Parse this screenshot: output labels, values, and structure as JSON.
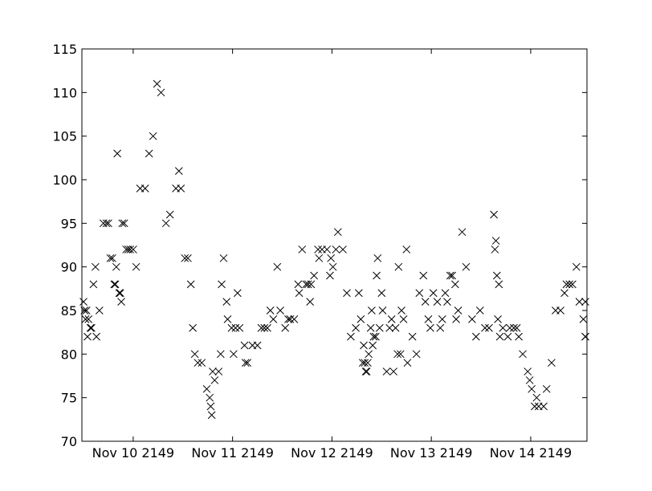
{
  "chart_data": {
    "type": "scatter",
    "title": "",
    "xlabel": "",
    "ylabel": "",
    "marker": "x",
    "marker_color": "#000000",
    "grid": false,
    "legend": "none",
    "xlim": [
      0,
      5.05
    ],
    "ylim": [
      70,
      115
    ],
    "x_ticks": [
      {
        "value": 0.5,
        "label": "Nov 10 2149"
      },
      {
        "value": 1.5,
        "label": "Nov 11 2149"
      },
      {
        "value": 2.5,
        "label": "Nov 12 2149"
      },
      {
        "value": 3.5,
        "label": "Nov 13 2149"
      },
      {
        "value": 4.5,
        "label": "Nov 14 2149"
      }
    ],
    "y_ticks": [
      {
        "value": 70,
        "label": "70"
      },
      {
        "value": 75,
        "label": "75"
      },
      {
        "value": 80,
        "label": "80"
      },
      {
        "value": 85,
        "label": "85"
      },
      {
        "value": 90,
        "label": "90"
      },
      {
        "value": 95,
        "label": "95"
      },
      {
        "value": 100,
        "label": "100"
      },
      {
        "value": 105,
        "label": "105"
      },
      {
        "value": 110,
        "label": "110"
      },
      {
        "value": 115,
        "label": "115"
      }
    ],
    "series": [
      {
        "points": [
          [
            0.0,
            86
          ],
          [
            0.01,
            85
          ],
          [
            0.02,
            84
          ],
          [
            0.03,
            85
          ],
          [
            0.04,
            82
          ],
          [
            0.05,
            84
          ],
          [
            0.07,
            83
          ],
          [
            0.08,
            83
          ],
          [
            0.1,
            88
          ],
          [
            0.12,
            90
          ],
          [
            0.13,
            82
          ],
          [
            0.16,
            85
          ],
          [
            0.2,
            95
          ],
          [
            0.23,
            95
          ],
          [
            0.25,
            95
          ],
          [
            0.27,
            91
          ],
          [
            0.29,
            91
          ],
          [
            0.31,
            88
          ],
          [
            0.32,
            88
          ],
          [
            0.33,
            90
          ],
          [
            0.34,
            103
          ],
          [
            0.36,
            87
          ],
          [
            0.37,
            87
          ],
          [
            0.38,
            86
          ],
          [
            0.39,
            95
          ],
          [
            0.41,
            95
          ],
          [
            0.43,
            92
          ],
          [
            0.45,
            92
          ],
          [
            0.47,
            92
          ],
          [
            0.5,
            92
          ],
          [
            0.53,
            90
          ],
          [
            0.57,
            99
          ],
          [
            0.62,
            99
          ],
          [
            0.66,
            103
          ],
          [
            0.7,
            105
          ],
          [
            0.74,
            111
          ],
          [
            0.78,
            110
          ],
          [
            0.83,
            95
          ],
          [
            0.87,
            96
          ],
          [
            0.93,
            99
          ],
          [
            0.96,
            101
          ],
          [
            0.98,
            99
          ],
          [
            1.02,
            91
          ],
          [
            1.05,
            91
          ],
          [
            1.08,
            88
          ],
          [
            1.1,
            83
          ],
          [
            1.12,
            80
          ],
          [
            1.15,
            79
          ],
          [
            1.19,
            79
          ],
          [
            1.24,
            76
          ],
          [
            1.27,
            75
          ],
          [
            1.28,
            74
          ],
          [
            1.29,
            73
          ],
          [
            1.3,
            78
          ],
          [
            1.32,
            77
          ],
          [
            1.36,
            78
          ],
          [
            1.38,
            80
          ],
          [
            1.39,
            88
          ],
          [
            1.41,
            91
          ],
          [
            1.44,
            86
          ],
          [
            1.45,
            84
          ],
          [
            1.49,
            83
          ],
          [
            1.51,
            80
          ],
          [
            1.53,
            83
          ],
          [
            1.55,
            87
          ],
          [
            1.57,
            83
          ],
          [
            1.62,
            81
          ],
          [
            1.63,
            79
          ],
          [
            1.65,
            79
          ],
          [
            1.7,
            81
          ],
          [
            1.75,
            81
          ],
          [
            1.79,
            83
          ],
          [
            1.82,
            83
          ],
          [
            1.85,
            83
          ],
          [
            1.88,
            85
          ],
          [
            1.91,
            84
          ],
          [
            1.95,
            90
          ],
          [
            1.98,
            85
          ],
          [
            2.03,
            83
          ],
          [
            2.06,
            84
          ],
          [
            2.08,
            84
          ],
          [
            2.12,
            84
          ],
          [
            2.16,
            88
          ],
          [
            2.17,
            87
          ],
          [
            2.2,
            92
          ],
          [
            2.24,
            88
          ],
          [
            2.26,
            88
          ],
          [
            2.28,
            86
          ],
          [
            2.29,
            88
          ],
          [
            2.32,
            89
          ],
          [
            2.36,
            92
          ],
          [
            2.37,
            91
          ],
          [
            2.4,
            92
          ],
          [
            2.45,
            92
          ],
          [
            2.48,
            89
          ],
          [
            2.49,
            91
          ],
          [
            2.51,
            90
          ],
          [
            2.54,
            92
          ],
          [
            2.56,
            94
          ],
          [
            2.61,
            92
          ],
          [
            2.65,
            87
          ],
          [
            2.69,
            82
          ],
          [
            2.74,
            83
          ],
          [
            2.77,
            87
          ],
          [
            2.79,
            84
          ],
          [
            2.81,
            79
          ],
          [
            2.82,
            81
          ],
          [
            2.83,
            79
          ],
          [
            2.84,
            78
          ],
          [
            2.85,
            78
          ],
          [
            2.86,
            79
          ],
          [
            2.87,
            80
          ],
          [
            2.89,
            83
          ],
          [
            2.9,
            85
          ],
          [
            2.91,
            81
          ],
          [
            2.92,
            82
          ],
          [
            2.94,
            82
          ],
          [
            2.95,
            89
          ],
          [
            2.96,
            91
          ],
          [
            2.98,
            83
          ],
          [
            3.0,
            87
          ],
          [
            3.01,
            85
          ],
          [
            3.05,
            78
          ],
          [
            3.08,
            83
          ],
          [
            3.1,
            84
          ],
          [
            3.12,
            78
          ],
          [
            3.14,
            83
          ],
          [
            3.16,
            80
          ],
          [
            3.17,
            90
          ],
          [
            3.19,
            80
          ],
          [
            3.2,
            85
          ],
          [
            3.22,
            84
          ],
          [
            3.25,
            92
          ],
          [
            3.26,
            79
          ],
          [
            3.31,
            82
          ],
          [
            3.35,
            80
          ],
          [
            3.38,
            87
          ],
          [
            3.42,
            89
          ],
          [
            3.44,
            86
          ],
          [
            3.47,
            84
          ],
          [
            3.49,
            83
          ],
          [
            3.52,
            87
          ],
          [
            3.56,
            86
          ],
          [
            3.59,
            83
          ],
          [
            3.61,
            84
          ],
          [
            3.64,
            87
          ],
          [
            3.66,
            86
          ],
          [
            3.69,
            89
          ],
          [
            3.71,
            89
          ],
          [
            3.74,
            88
          ],
          [
            3.75,
            84
          ],
          [
            3.77,
            85
          ],
          [
            3.81,
            94
          ],
          [
            3.85,
            90
          ],
          [
            3.91,
            84
          ],
          [
            3.95,
            82
          ],
          [
            3.99,
            85
          ],
          [
            4.04,
            83
          ],
          [
            4.08,
            83
          ],
          [
            4.13,
            96
          ],
          [
            4.14,
            92
          ],
          [
            4.15,
            93
          ],
          [
            4.16,
            89
          ],
          [
            4.17,
            84
          ],
          [
            4.18,
            88
          ],
          [
            4.19,
            82
          ],
          [
            4.22,
            83
          ],
          [
            4.27,
            82
          ],
          [
            4.29,
            83
          ],
          [
            4.33,
            83
          ],
          [
            4.36,
            83
          ],
          [
            4.38,
            82
          ],
          [
            4.42,
            80
          ],
          [
            4.47,
            78
          ],
          [
            4.49,
            77
          ],
          [
            4.51,
            76
          ],
          [
            4.54,
            74
          ],
          [
            4.56,
            75
          ],
          [
            4.58,
            74
          ],
          [
            4.63,
            74
          ],
          [
            4.66,
            76
          ],
          [
            4.71,
            79
          ],
          [
            4.75,
            85
          ],
          [
            4.8,
            85
          ],
          [
            4.84,
            87
          ],
          [
            4.86,
            88
          ],
          [
            4.89,
            88
          ],
          [
            4.92,
            88
          ],
          [
            4.96,
            90
          ],
          [
            4.99,
            86
          ],
          [
            5.03,
            84
          ],
          [
            5.05,
            86
          ],
          [
            5.08,
            82
          ],
          [
            5.1,
            82
          ]
        ]
      }
    ]
  }
}
